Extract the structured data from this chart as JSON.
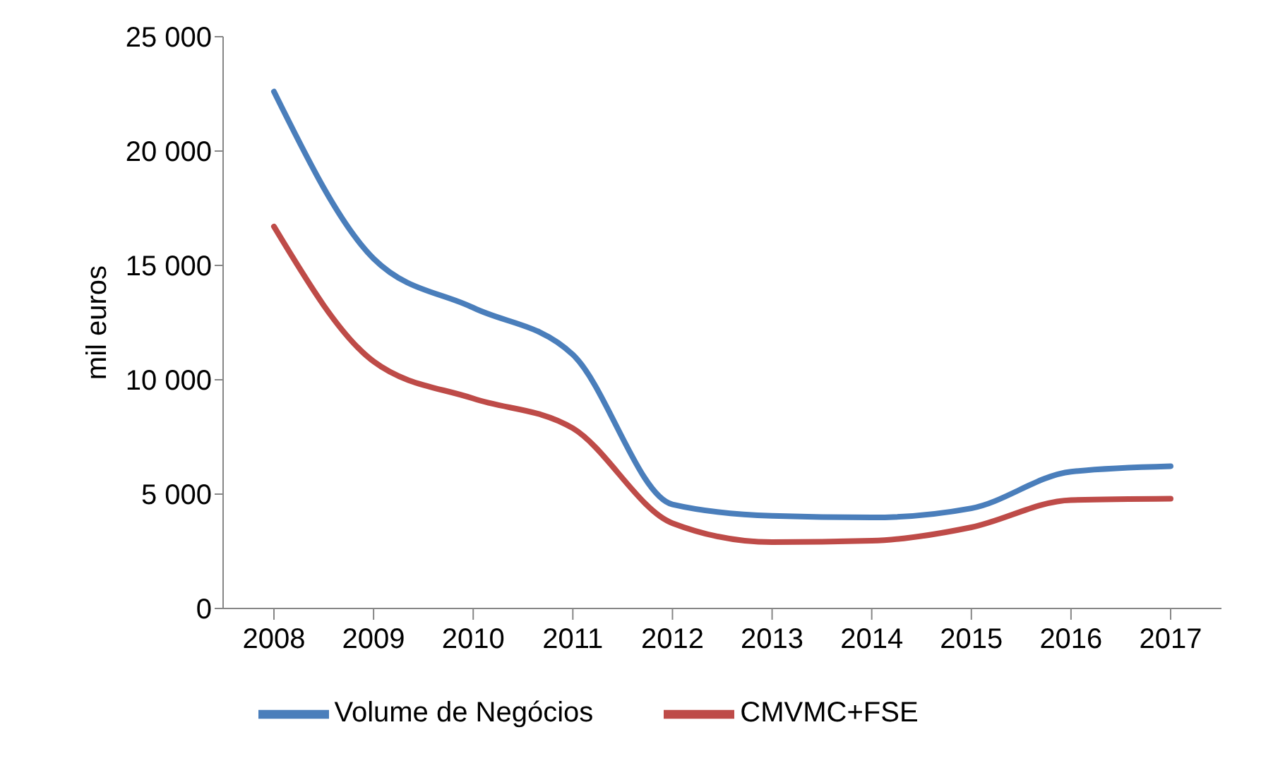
{
  "chart_data": {
    "type": "line",
    "ylabel": "mil euros",
    "categories": [
      "2008",
      "2009",
      "2010",
      "2011",
      "2012",
      "2013",
      "2014",
      "2015",
      "2016",
      "2017"
    ],
    "series": [
      {
        "name": "Volume de Negócios",
        "color": "#4a7ebb",
        "values": [
          22600,
          15300,
          13150,
          11100,
          4550,
          4050,
          3980,
          4380,
          5980,
          6220
        ]
      },
      {
        "name": "CMVMC+FSE",
        "color": "#be4b48",
        "values": [
          16700,
          10800,
          9180,
          7880,
          3730,
          2900,
          2960,
          3550,
          4740,
          4800
        ]
      }
    ],
    "ylim": [
      0,
      25000
    ],
    "yticks": [
      {
        "value": 0,
        "label": "0"
      },
      {
        "value": 5000,
        "label": "5 000"
      },
      {
        "value": 10000,
        "label": "10 000"
      },
      {
        "value": 15000,
        "label": "15 000"
      },
      {
        "value": 20000,
        "label": "20 000"
      },
      {
        "value": 25000,
        "label": "25 000"
      }
    ],
    "grid": false,
    "legend": "bottom",
    "marker": "none",
    "line_style": "solid"
  }
}
